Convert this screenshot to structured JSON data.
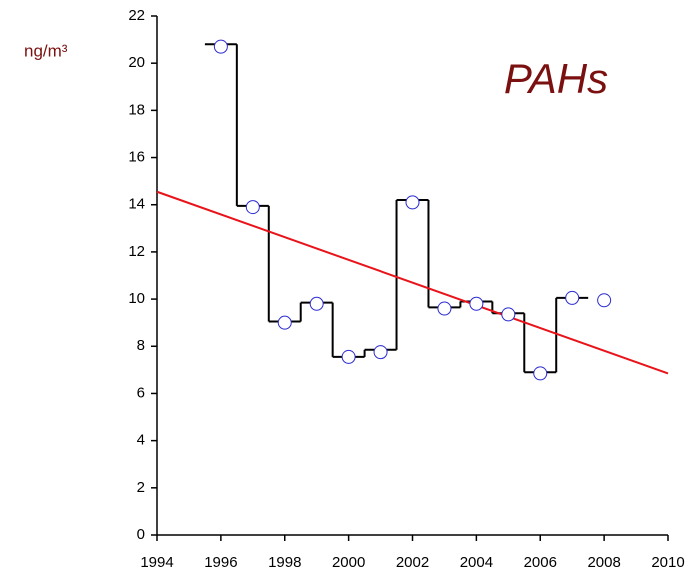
{
  "chart_data": {
    "type": "scatter",
    "title": "PAHs",
    "y_label": "ng/m³",
    "xlim": [
      1994,
      2010
    ],
    "xticks": [
      1994,
      1996,
      1998,
      2000,
      2002,
      2004,
      2006,
      2008,
      2010
    ],
    "ylim": [
      0,
      22
    ],
    "yticks": [
      0,
      2,
      4,
      6,
      8,
      10,
      12,
      14,
      16,
      18,
      20,
      22
    ],
    "series": [
      {
        "style": "steps",
        "color": "#000000",
        "x": [
          1996,
          1997,
          1998,
          1999,
          2000,
          2001,
          2002,
          2003,
          2004,
          2005,
          2006,
          2007
        ],
        "values": [
          20.8,
          13.95,
          9.05,
          9.85,
          7.55,
          7.85,
          14.2,
          9.65,
          9.9,
          9.4,
          6.9,
          10.05
        ]
      },
      {
        "style": "line",
        "color": "#e8141a",
        "x": [
          1994,
          2010
        ],
        "values": [
          14.55,
          6.85
        ]
      },
      {
        "style": "markers",
        "color": "#2b2bd0",
        "x": [
          1996,
          1997,
          1998,
          1999,
          2000,
          2001,
          2002,
          2003,
          2004,
          2005,
          2006,
          2007,
          2008
        ],
        "values": [
          20.7,
          13.9,
          9.0,
          9.8,
          7.55,
          7.75,
          14.1,
          9.6,
          9.8,
          9.35,
          6.85,
          10.05,
          9.95
        ]
      }
    ]
  }
}
